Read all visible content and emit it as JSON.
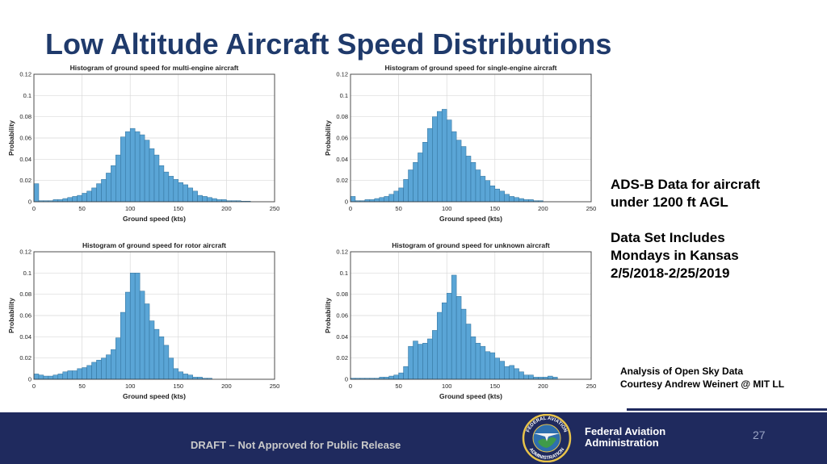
{
  "slide": {
    "title": "Low Altitude Aircraft Speed Distributions",
    "info_lines": [
      "ADS-B Data for aircraft",
      "under 1200 ft AGL",
      "Data Set Includes",
      "Mondays in Kansas",
      "2/5/2018-2/25/2019"
    ],
    "credit_lines": [
      "Analysis of Open Sky Data",
      "Courtesy Andrew Weinert @ MIT LL"
    ],
    "footer": {
      "draft": "DRAFT – Not Approved for Public Release",
      "agency_line1": "Federal Aviation",
      "agency_line2": "Administration",
      "seal_top": "FEDERAL AVIATION",
      "seal_bottom": "ADMINISTRATION",
      "page_number": "27"
    },
    "colors": {
      "title": "#1f3a6b",
      "footer": "#1f2a5e",
      "bar": "#5aa5d6",
      "bar_edge": "#2f6f99"
    }
  },
  "chart_data": [
    {
      "type": "bar",
      "title": "Histogram of ground speed for multi-engine aircraft",
      "xlabel": "Ground speed (kts)",
      "ylabel": "Probability",
      "xlim": [
        0,
        250
      ],
      "ylim": [
        0,
        0.12
      ],
      "xticks": [
        "0",
        "50",
        "100",
        "150",
        "200",
        "250"
      ],
      "yticks": [
        "0",
        "0.02",
        "0.04",
        "0.06",
        "0.08",
        "0.1",
        "0.12"
      ],
      "grid": true,
      "bin_width": 5,
      "bin_start": 0,
      "values": [
        0.017,
        0.001,
        0.001,
        0.001,
        0.002,
        0.002,
        0.003,
        0.004,
        0.005,
        0.006,
        0.008,
        0.01,
        0.013,
        0.017,
        0.021,
        0.027,
        0.034,
        0.044,
        0.061,
        0.066,
        0.069,
        0.066,
        0.063,
        0.058,
        0.05,
        0.044,
        0.034,
        0.028,
        0.024,
        0.021,
        0.018,
        0.016,
        0.013,
        0.01,
        0.006,
        0.005,
        0.004,
        0.003,
        0.002,
        0.002,
        0.001,
        0.001,
        0.001,
        0.0005,
        0.0005,
        0,
        0,
        0,
        0,
        0
      ]
    },
    {
      "type": "bar",
      "title": "Histogram of ground speed for single-engine aircraft",
      "xlabel": "Ground speed (kts)",
      "ylabel": "Probability",
      "xlim": [
        0,
        250
      ],
      "ylim": [
        0,
        0.12
      ],
      "xticks": [
        "0",
        "50",
        "100",
        "150",
        "200",
        "250"
      ],
      "yticks": [
        "0",
        "0.02",
        "0.04",
        "0.06",
        "0.08",
        "0.1",
        "0.12"
      ],
      "grid": true,
      "bin_width": 5,
      "bin_start": 0,
      "values": [
        0.005,
        0.001,
        0.001,
        0.002,
        0.002,
        0.003,
        0.004,
        0.005,
        0.007,
        0.01,
        0.013,
        0.021,
        0.03,
        0.037,
        0.046,
        0.056,
        0.069,
        0.08,
        0.085,
        0.087,
        0.077,
        0.066,
        0.058,
        0.052,
        0.043,
        0.037,
        0.03,
        0.024,
        0.02,
        0.015,
        0.012,
        0.01,
        0.007,
        0.005,
        0.004,
        0.003,
        0.002,
        0.002,
        0.001,
        0.001,
        0,
        0,
        0,
        0,
        0,
        0,
        0,
        0,
        0,
        0
      ]
    },
    {
      "type": "bar",
      "title": "Histogram of ground speed for rotor aircraft",
      "xlabel": "Ground speed (kts)",
      "ylabel": "Probability",
      "xlim": [
        0,
        250
      ],
      "ylim": [
        0,
        0.12
      ],
      "xticks": [
        "0",
        "50",
        "100",
        "150",
        "200",
        "250"
      ],
      "yticks": [
        "0",
        "0.02",
        "0.04",
        "0.06",
        "0.08",
        "0.1",
        "0.12"
      ],
      "grid": true,
      "bin_width": 5,
      "bin_start": 0,
      "values": [
        0.005,
        0.004,
        0.003,
        0.003,
        0.004,
        0.005,
        0.007,
        0.008,
        0.008,
        0.01,
        0.011,
        0.013,
        0.016,
        0.018,
        0.02,
        0.023,
        0.028,
        0.039,
        0.063,
        0.082,
        0.1,
        0.1,
        0.083,
        0.071,
        0.055,
        0.047,
        0.04,
        0.032,
        0.02,
        0.01,
        0.007,
        0.005,
        0.004,
        0.002,
        0.002,
        0.001,
        0.001,
        0,
        0,
        0,
        0,
        0,
        0,
        0,
        0,
        0,
        0,
        0,
        0,
        0
      ]
    },
    {
      "type": "bar",
      "title": "Histogram of ground speed for unknown aircraft",
      "xlabel": "Ground speed (kts)",
      "ylabel": "Probability",
      "xlim": [
        0,
        250
      ],
      "ylim": [
        0,
        0.12
      ],
      "xticks": [
        "0",
        "50",
        "100",
        "150",
        "200",
        "250"
      ],
      "yticks": [
        "0",
        "0.02",
        "0.04",
        "0.06",
        "0.08",
        "0.1",
        "0.12"
      ],
      "grid": true,
      "bin_width": 5,
      "bin_start": 0,
      "values": [
        0.001,
        0.001,
        0.001,
        0.001,
        0.001,
        0.001,
        0.002,
        0.002,
        0.003,
        0.004,
        0.006,
        0.012,
        0.031,
        0.036,
        0.033,
        0.034,
        0.038,
        0.046,
        0.063,
        0.072,
        0.081,
        0.098,
        0.078,
        0.066,
        0.052,
        0.04,
        0.034,
        0.031,
        0.026,
        0.025,
        0.02,
        0.017,
        0.012,
        0.013,
        0.01,
        0.007,
        0.004,
        0.004,
        0.002,
        0.002,
        0.002,
        0.003,
        0.002,
        0,
        0,
        0,
        0,
        0,
        0,
        0
      ]
    }
  ]
}
